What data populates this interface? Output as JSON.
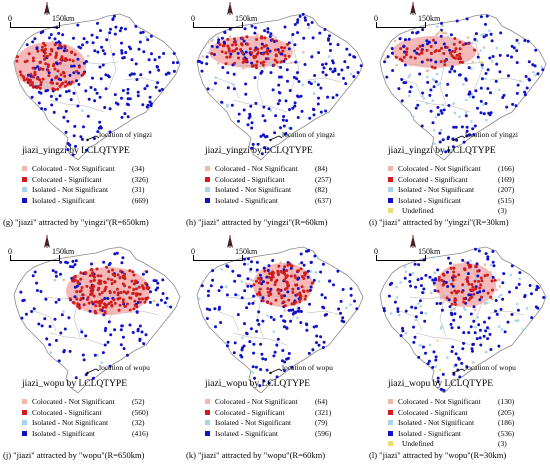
{
  "colors": {
    "colocated_not_significant": "#f0b8a8",
    "colocated_significant": "#d01c1c",
    "isolated_not_significant": "#a6d4ec",
    "isolated_significant": "#1010c8",
    "undefined": "#e8e070",
    "hot_zone": "#f4a6a6",
    "boundary": "#8a8a8a"
  },
  "scale_text": "150km",
  "scale_zero": "0",
  "legend_labels": {
    "colocated_not_significant": "Colocated - Not Significant",
    "colocated_significant": "Colocated - Significant",
    "isolated_not_significant": "Isolated - Not Significant",
    "isolated_significant": "Isolated - Significant",
    "undefined": "Undefined"
  },
  "panels": [
    {
      "id": "g",
      "title": "jiazi_yingzi by LCLQTYPE",
      "location_label": "location of yingzi",
      "caption": "(g) \"jiazi\" attracted by \"yingzi\"(R=650km)",
      "legend": [
        "(34)",
        "(326)",
        "(31)",
        "(669)"
      ],
      "has_undefined": false,
      "hot": "west-wide"
    },
    {
      "id": "h",
      "title": "jiazi_yingzi by LCLQTYPE",
      "location_label": "location of yingzi",
      "caption": "(h) \"jiazi\" attracted by \"yingzi\"(R=60km)",
      "legend": [
        "(84)",
        "(257)",
        "(82)",
        "(637)"
      ],
      "has_undefined": false,
      "hot": "north-band"
    },
    {
      "id": "i",
      "title": "jiazi_yingzi by LCLQTYPE",
      "location_label": "location of yingzi",
      "caption": "(i) \"jiazi\" attracted by \"yingzi\"(R=30km)",
      "legend": [
        "(166)",
        "(169)",
        "(207)",
        "(515)",
        "(3)"
      ],
      "has_undefined": true,
      "hot": "north-band"
    },
    {
      "id": "j",
      "title": "jiazi_wopu by LCLQTYPE",
      "location_label": "location of wopu",
      "caption": "(j) \"jiazi\" attracted by \"wopu\"(R=650km)",
      "legend": [
        "(52)",
        "(560)",
        "(32)",
        "(416)"
      ],
      "has_undefined": false,
      "hot": "north-east"
    },
    {
      "id": "k",
      "title": "jiazi_wopu by LCLQTYPE",
      "location_label": "location of wopu",
      "caption": "(k) \"jiazi\" attracted by \"wopu\"(R=60km)",
      "legend": [
        "(64)",
        "(321)",
        "(79)",
        "(596)"
      ],
      "has_undefined": false,
      "hot": "north-central"
    },
    {
      "id": "l",
      "title": "jiazi_wopu by LCLQTYPE",
      "location_label": "location of wopu",
      "caption": "(l) \"jiazi\" attracted by \"wopu\"(R=30km)",
      "legend": [
        "(130)",
        "(205)",
        "(186)",
        "(536)",
        "(3)"
      ],
      "has_undefined": true,
      "hot": "north-central"
    }
  ]
}
